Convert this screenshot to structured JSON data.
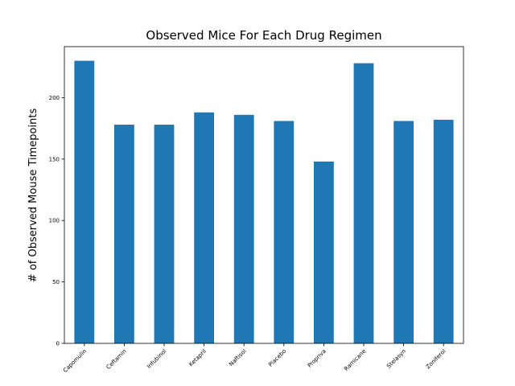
{
  "chart_data": {
    "type": "bar",
    "title": "Observed Mice For Each Drug Regimen",
    "xlabel": "",
    "ylabel": "# of Observed Mouse Timepoints",
    "categories": [
      "Capomulin",
      "Ceftamin",
      "Infubinol",
      "Ketapril",
      "Naftisol",
      "Placebo",
      "Propriva",
      "Ramicane",
      "Stelasyn",
      "Zoniferol"
    ],
    "values": [
      230,
      178,
      178,
      188,
      186,
      181,
      148,
      228,
      181,
      182
    ],
    "yticks": [
      0,
      50,
      100,
      150,
      200
    ],
    "ylim": [
      0,
      241.5
    ],
    "bar_color": "#1f77b4",
    "grid": false,
    "legend": "none"
  }
}
